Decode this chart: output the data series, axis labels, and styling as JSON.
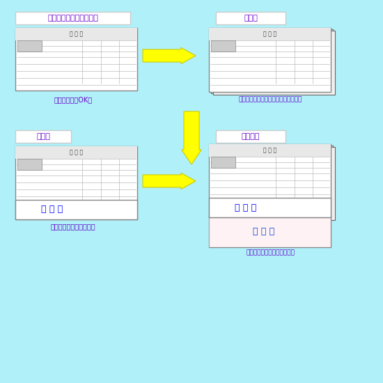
{
  "bg_color": "#b0f0f8",
  "title_bg_color": "#ffffff",
  "title_text_color": "#6600cc",
  "caption_text_color": "#6600cc",
  "arrow_color": "#ffff00",
  "arrow_edge_color": "#aaaaaa",
  "form_bg": "#ffffff",
  "form_border": "#888888",
  "step1_title": "一枚ずつ書式をプリント",
  "step2_title": "重ねる",
  "step3_title": "手書き",
  "step4_title": "下に複写",
  "caption1": "コピー機でもOK！",
  "caption2": "必要に応じてホッチキス等で止める。",
  "caption3": "ボールペンで書きます。",
  "caption4": "書いた文字が下に写ります。",
  "namae_color": "#0000ff",
  "namae_color2": "#0066cc",
  "form_title": "申 込 書"
}
